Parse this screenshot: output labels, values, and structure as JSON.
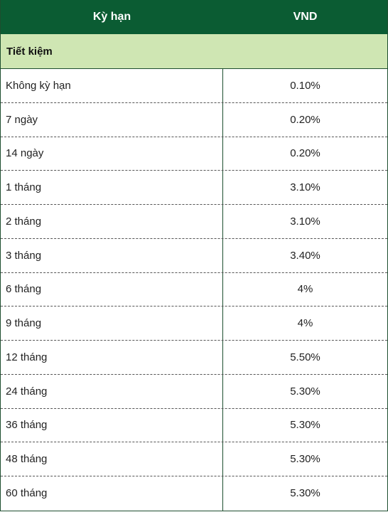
{
  "table": {
    "header": {
      "term": "Kỳ hạn",
      "currency": "VND"
    },
    "section": "Tiết kiệm",
    "rows": [
      {
        "term": "Không kỳ hạn",
        "rate": "0.10%"
      },
      {
        "term": "7 ngày",
        "rate": "0.20%"
      },
      {
        "term": "14 ngày",
        "rate": "0.20%"
      },
      {
        "term": "1 tháng",
        "rate": "3.10%"
      },
      {
        "term": "2 tháng",
        "rate": "3.10%"
      },
      {
        "term": "3 tháng",
        "rate": "3.40%"
      },
      {
        "term": "6 tháng",
        "rate": "4%"
      },
      {
        "term": "9 tháng",
        "rate": "4%"
      },
      {
        "term": "12 tháng",
        "rate": "5.50%"
      },
      {
        "term": "24 tháng",
        "rate": "5.30%"
      },
      {
        "term": "36 tháng",
        "rate": "5.30%"
      },
      {
        "term": "48 tháng",
        "rate": "5.30%"
      },
      {
        "term": "60 tháng",
        "rate": "5.30%"
      }
    ]
  }
}
